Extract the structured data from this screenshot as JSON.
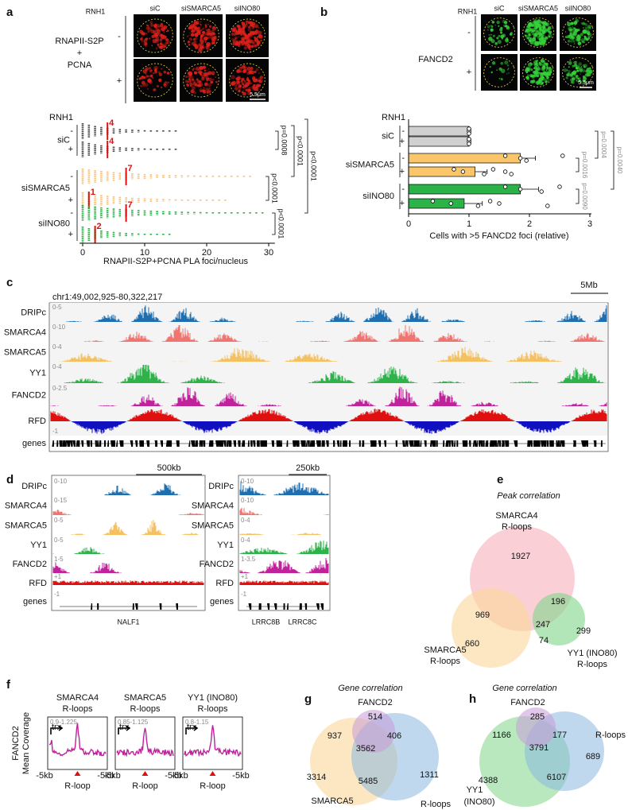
{
  "a": {
    "letter": "a",
    "rnh1": "RNH1",
    "conditions": [
      "siC",
      "siSMARCA5",
      "siINO80"
    ],
    "signs": [
      "-",
      "+"
    ],
    "stain_lines": [
      "RNAPII-S2P",
      "+",
      "PCNA"
    ],
    "scale_bar": "5.5μm",
    "chart": {
      "type": "dot",
      "row_header": "RNH1",
      "groups": [
        {
          "name": "siC",
          "color": "#4d4d4d",
          "rows": [
            {
              "sign": "-",
              "median": 4,
              "max": 15
            },
            {
              "sign": "+",
              "median": 4,
              "max": 15
            }
          ]
        },
        {
          "name": "siSMARCA5",
          "color": "#f7c27b",
          "rows": [
            {
              "sign": "-",
              "median": 7,
              "max": 27
            },
            {
              "sign": "+",
              "median": 1,
              "max": 23
            }
          ]
        },
        {
          "name": "siINO80",
          "color": "#2fb34b",
          "rows": [
            {
              "sign": "-",
              "median": 7,
              "max": 29
            },
            {
              "sign": "+",
              "median": 2,
              "max": 14
            }
          ]
        }
      ],
      "xlim": [
        0,
        31
      ],
      "xticks": [
        0,
        10,
        20,
        30
      ],
      "xlabel": "RNAPII-S2P+PCNA PLA foci/nucleus",
      "pvalues": [
        "p=0.0008",
        "p<0.0001",
        "p<0.0001",
        "p<0.0001",
        "p<0.0001"
      ]
    }
  },
  "b": {
    "letter": "b",
    "rnh1": "RNH1",
    "conditions": [
      "siC",
      "siSMARCA5",
      "siINO80"
    ],
    "signs": [
      "-",
      "+"
    ],
    "stain": "FANCD2",
    "scale_bar": "5.5μm",
    "chart": {
      "type": "bar",
      "row_header": "RNH1",
      "groups": [
        {
          "name": "siC",
          "color": "#d0d0d0",
          "rows": [
            {
              "sign": "-",
              "value": 1,
              "error": 0.03,
              "points": [
                1,
                1,
                1,
                1
              ]
            },
            {
              "sign": "+",
              "value": 1,
              "error": 0.03,
              "points": [
                1,
                1,
                1,
                1
              ]
            }
          ]
        },
        {
          "name": "siSMARCA5",
          "color": "#fbc56a",
          "rows": [
            {
              "sign": "-",
              "value": 1.85,
              "error": 0.25,
              "points": [
                1.6,
                1.85,
                1.95,
                2.55
              ]
            },
            {
              "sign": "+",
              "value": 1.1,
              "error": 0.2,
              "points": [
                0.75,
                0.9,
                1.25,
                1.4,
                1.6,
                1.7
              ]
            }
          ]
        },
        {
          "name": "siINO80",
          "color": "#2bb34a",
          "rows": [
            {
              "sign": "-",
              "value": 1.85,
              "error": 0.3,
              "points": [
                1.6,
                1.85,
                2.2,
                2.5
              ]
            },
            {
              "sign": "+",
              "value": 0.92,
              "error": 0.3,
              "points": [
                0.4,
                0.7,
                1.15,
                1.35,
                1.5,
                2.3
              ]
            }
          ]
        }
      ],
      "xlim": [
        0,
        3
      ],
      "xticks": [
        0,
        1,
        2,
        3
      ],
      "xlabel": "Cells with >5 FANCD2 foci (relative)",
      "pvalues": [
        "p=0.0016",
        "p=0.0090",
        "p=0.0004",
        "p=0.0040"
      ]
    }
  },
  "c": {
    "letter": "c",
    "region": "chr1:49,002,925-80,322,217",
    "scale": "5Mb",
    "tracks": [
      {
        "name": "DRIPc",
        "range": "0-5",
        "color": "#1f6fb0"
      },
      {
        "name": "SMARCA4",
        "range": "0-10",
        "color": "#f07470"
      },
      {
        "name": "SMARCA5",
        "range": "0-4",
        "color": "#f5c060"
      },
      {
        "name": "YY1",
        "range": "0-4",
        "color": "#2db34a"
      },
      {
        "name": "FANCD2",
        "range": "0-2.5",
        "color": "#c0229c"
      },
      {
        "name": "RFD",
        "range": "-1",
        "color": "#e01010",
        "color2": "#1010c0"
      }
    ],
    "genes": "genes"
  },
  "d": {
    "letter": "d",
    "views": [
      {
        "scale": "500kb",
        "ranges": [
          "0-10",
          "0-15",
          "0-5",
          "0-5",
          "1-5",
          "+1",
          "-1"
        ],
        "gene_names": [
          "NALF1"
        ]
      },
      {
        "scale": "250kb",
        "ranges": [
          "0-10",
          "0-10",
          "0-4",
          "0-4",
          "1-3.5",
          "+1",
          "-1"
        ],
        "gene_names": [
          "LRRC8B",
          "LRRC8C"
        ]
      }
    ]
  },
  "e": {
    "letter": "e",
    "title": "Peak correlation",
    "sets": [
      [
        "SMARCA4",
        "R-loops"
      ],
      [
        "SMARCA5",
        "R-loops"
      ],
      [
        "YY1 (INO80)",
        "R-loops"
      ]
    ],
    "counts": [
      1927,
      969,
      196,
      247,
      299,
      74,
      660
    ]
  },
  "f": {
    "letter": "f",
    "ylabel": [
      "FANCD2",
      "Mean Coverage"
    ],
    "trx": "trx",
    "x_left": "-5kb",
    "x_right": "-5kb",
    "x_center": "R-loop",
    "plots": [
      {
        "title": [
          "SMARCA4",
          "R-loops"
        ],
        "range": "0.9-1.225"
      },
      {
        "title": [
          "SMARCA5",
          "R-loops"
        ],
        "range": "0.85-1.125"
      },
      {
        "title": [
          "YY1 (INO80)",
          "R-loops"
        ],
        "range": "0.8-1.15"
      }
    ]
  },
  "g": {
    "letter": "g",
    "title": "Gene correlation",
    "sets": [
      "FANCD2",
      "SMARCA5",
      "R-loops"
    ],
    "counts": [
      514,
      937,
      406,
      3562,
      3314,
      5485,
      1311
    ]
  },
  "h": {
    "letter": "h",
    "title": "Gene correlation",
    "sets": [
      "FANCD2",
      "R-loops",
      "YY1",
      "(INO80)"
    ],
    "counts": [
      285,
      1166,
      177,
      3791,
      689,
      4388,
      6107
    ]
  }
}
